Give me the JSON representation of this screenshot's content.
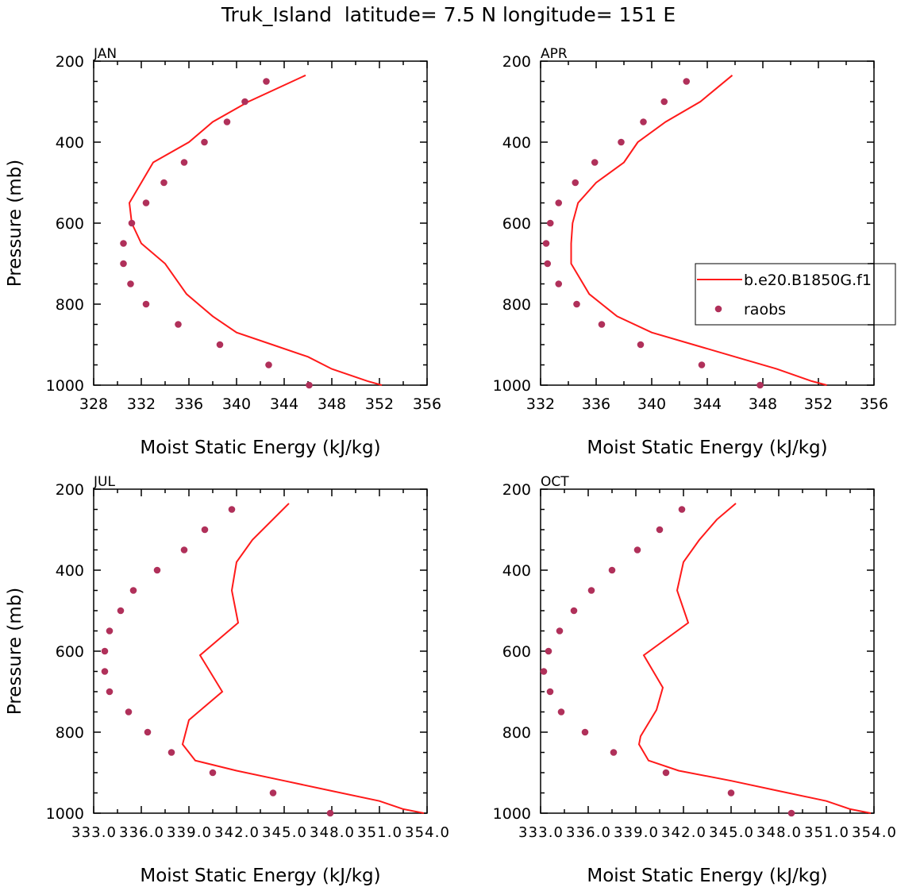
{
  "figure": {
    "title": "Truk_Island  latitude= 7.5 N longitude= 151 E"
  },
  "legend": {
    "model_label": "b.e20.B1850G.f1",
    "obs_label": "raobs"
  },
  "colors": {
    "model": "#ff1a1a",
    "obs": "#b0305a"
  },
  "chart_data": [
    {
      "type": "line",
      "panel": "JAN",
      "xlabel": "Moist Static Energy (kJ/kg)",
      "ylabel": "Pressure (mb)",
      "xlim": [
        328,
        356
      ],
      "ylim": [
        200,
        1000
      ],
      "x_ticks": [
        "328",
        "332",
        "336",
        "340",
        "344",
        "348",
        "352",
        "356"
      ],
      "y_ticks": [
        "200",
        "400",
        "600",
        "800",
        "1000"
      ],
      "series": [
        {
          "name": "b.e20.B1850G.f1",
          "kind": "line",
          "x": [
            345.8,
            341.0,
            338.0,
            336.0,
            333.0,
            332.0,
            331.0,
            331.2,
            332.0,
            334.0,
            335.8,
            338.0,
            340.0,
            343.0,
            346.0,
            348.0,
            351.0,
            352.2
          ],
          "y": [
            235,
            300,
            350,
            400,
            450,
            500,
            550,
            600,
            650,
            700,
            775,
            830,
            870,
            900,
            930,
            960,
            990,
            1000
          ]
        },
        {
          "name": "raobs",
          "kind": "scatter",
          "x": [
            342.5,
            340.7,
            339.2,
            337.3,
            335.6,
            333.9,
            332.4,
            331.2,
            330.5,
            330.5,
            331.1,
            332.4,
            335.1,
            338.6,
            342.7,
            346.1
          ],
          "y": [
            250,
            300,
            350,
            400,
            450,
            500,
            550,
            600,
            650,
            700,
            750,
            800,
            850,
            900,
            950,
            1000
          ]
        }
      ]
    },
    {
      "type": "line",
      "panel": "APR",
      "xlabel": "Moist Static Energy (kJ/kg)",
      "ylabel": "",
      "xlim": [
        332,
        356
      ],
      "ylim": [
        200,
        1000
      ],
      "x_ticks": [
        "332",
        "336",
        "340",
        "344",
        "348",
        "352",
        "356"
      ],
      "y_ticks": [
        "200",
        "400",
        "600",
        "800",
        "1000"
      ],
      "series": [
        {
          "name": "b.e20.B1850G.f1",
          "kind": "line",
          "x": [
            345.8,
            343.5,
            341.0,
            339.0,
            338.0,
            336.0,
            334.7,
            334.3,
            334.2,
            334.2,
            335.5,
            337.5,
            340.0,
            343.0,
            346.0,
            349.0,
            351.5,
            352.6
          ],
          "y": [
            235,
            300,
            350,
            400,
            450,
            500,
            550,
            600,
            650,
            700,
            775,
            830,
            870,
            900,
            930,
            960,
            990,
            1000
          ]
        },
        {
          "name": "raobs",
          "kind": "scatter",
          "x": [
            342.5,
            340.9,
            339.4,
            337.8,
            335.9,
            334.5,
            333.3,
            332.7,
            332.4,
            332.5,
            333.3,
            334.6,
            336.4,
            339.2,
            343.6,
            347.8
          ],
          "y": [
            250,
            300,
            350,
            400,
            450,
            500,
            550,
            600,
            650,
            700,
            750,
            800,
            850,
            900,
            950,
            1000
          ]
        }
      ]
    },
    {
      "type": "line",
      "panel": "JUL",
      "xlabel": "Moist Static Energy (kJ/kg)",
      "ylabel": "Pressure (mb)",
      "xlim": [
        333.0,
        354.0
      ],
      "ylim": [
        200,
        1000
      ],
      "x_ticks": [
        "333.0",
        "336.0",
        "339.0",
        "342.0",
        "345.0",
        "348.0",
        "351.0",
        "354.0"
      ],
      "y_ticks": [
        "200",
        "400",
        "600",
        "800",
        "1000"
      ],
      "series": [
        {
          "name": "b.e20.B1850G.f1",
          "kind": "line",
          "x": [
            345.3,
            343.0,
            342.0,
            341.7,
            342.1,
            339.7,
            341.1,
            339.0,
            338.6,
            339.4,
            342.0,
            345.0,
            348.0,
            351.0,
            352.5,
            353.8
          ],
          "y": [
            235,
            325,
            380,
            450,
            530,
            610,
            700,
            770,
            830,
            870,
            895,
            920,
            945,
            970,
            990,
            1000
          ]
        },
        {
          "name": "raobs",
          "kind": "scatter",
          "x": [
            341.7,
            340.0,
            338.7,
            337.0,
            335.5,
            334.7,
            334.0,
            333.7,
            333.7,
            334.0,
            335.2,
            336.4,
            337.9,
            340.5,
            344.3,
            347.9
          ],
          "y": [
            250,
            300,
            350,
            400,
            450,
            500,
            550,
            600,
            650,
            700,
            750,
            800,
            850,
            900,
            950,
            1000
          ]
        }
      ]
    },
    {
      "type": "line",
      "panel": "OCT",
      "xlabel": "Moist Static Energy (kJ/kg)",
      "ylabel": "",
      "xlim": [
        333.0,
        354.0
      ],
      "ylim": [
        200,
        1000
      ],
      "x_ticks": [
        "333.0",
        "336.0",
        "339.0",
        "342.0",
        "345.0",
        "348.0",
        "351.0",
        "354.0"
      ],
      "y_ticks": [
        "200",
        "400",
        "600",
        "800",
        "1000"
      ],
      "series": [
        {
          "name": "b.e20.B1850G.f1",
          "kind": "line",
          "x": [
            345.3,
            344.1,
            343.0,
            342.0,
            341.6,
            342.3,
            339.5,
            340.7,
            340.3,
            339.3,
            339.2,
            339.8,
            341.7,
            345.0,
            348.0,
            351.0,
            352.5,
            353.8
          ],
          "y": [
            235,
            275,
            325,
            380,
            450,
            530,
            610,
            690,
            745,
            810,
            830,
            870,
            895,
            920,
            945,
            970,
            990,
            1000
          ]
        },
        {
          "name": "raobs",
          "kind": "scatter",
          "x": [
            341.9,
            340.5,
            339.1,
            337.5,
            336.2,
            335.1,
            334.2,
            333.5,
            333.2,
            333.6,
            334.3,
            335.8,
            337.6,
            340.9,
            345.0,
            348.8
          ],
          "y": [
            250,
            300,
            350,
            400,
            450,
            500,
            550,
            600,
            650,
            700,
            750,
            800,
            850,
            900,
            950,
            1000
          ]
        }
      ]
    }
  ]
}
